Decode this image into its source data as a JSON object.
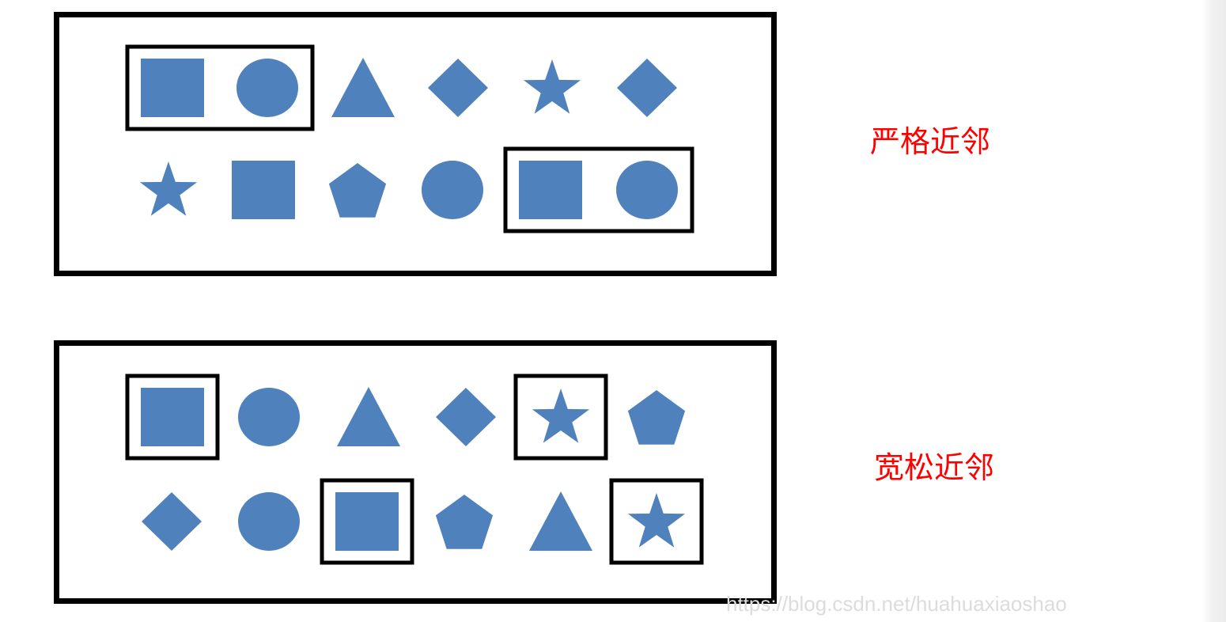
{
  "colors": {
    "shape_fill": "#4f81bd",
    "frame": "#000000",
    "caption": "#ff0000",
    "watermark": "#dcdcdc"
  },
  "diagram": [
    {
      "caption": "严格近邻",
      "rows": [
        [
          "square",
          "circle",
          "triangle",
          "diamond",
          "star",
          "diamond"
        ],
        [
          "star",
          "square",
          "pentagon",
          "circle",
          "square",
          "circle"
        ]
      ],
      "highlight_groups": [
        [
          [
            0,
            0
          ],
          [
            0,
            1
          ]
        ],
        [
          [
            1,
            4
          ],
          [
            1,
            5
          ]
        ]
      ]
    },
    {
      "caption": "宽松近邻",
      "rows": [
        [
          "square",
          "circle",
          "triangle",
          "diamond",
          "star",
          "pentagon"
        ],
        [
          "diamond",
          "circle",
          "square",
          "pentagon",
          "triangle",
          "star"
        ]
      ],
      "highlight_groups": [
        [
          [
            0,
            0
          ]
        ],
        [
          [
            0,
            4
          ]
        ],
        [
          [
            1,
            2
          ]
        ],
        [
          [
            1,
            5
          ]
        ]
      ]
    }
  ],
  "watermark": "https://blog.csdn.net/huahuaxiaoshao"
}
